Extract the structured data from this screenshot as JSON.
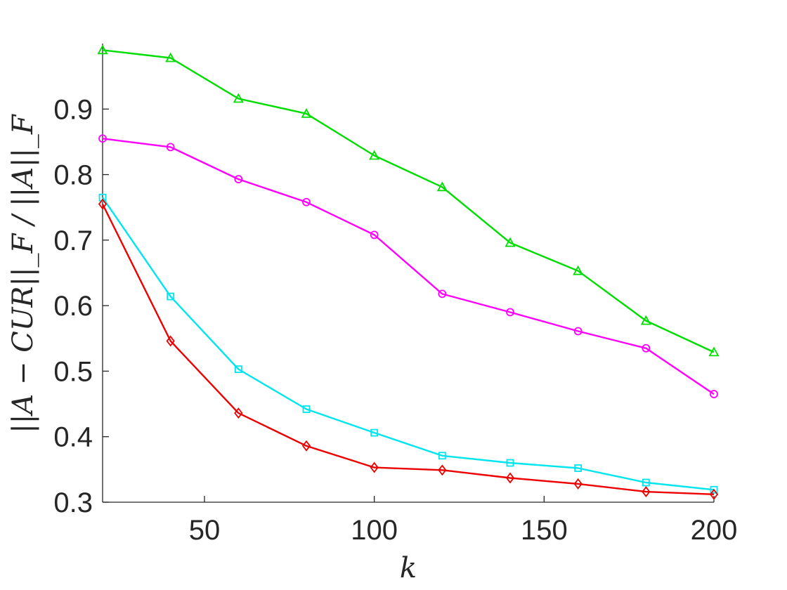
{
  "chart_data": {
    "type": "line",
    "title": "",
    "xlabel": "k",
    "ylabel": "||A − CUR||_F / ||A||_F",
    "xlim": [
      20,
      200
    ],
    "ylim": [
      0.3,
      1.0
    ],
    "xticks": [
      50,
      100,
      150,
      200
    ],
    "yticks": [
      0.3,
      0.4,
      0.5,
      0.6,
      0.7,
      0.8,
      0.9
    ],
    "xtick_labels": [
      "50",
      "100",
      "150",
      "200"
    ],
    "ytick_labels": [
      "0.3",
      "0.4",
      "0.5",
      "0.6",
      "0.7",
      "0.8",
      "0.9"
    ],
    "grid": false,
    "legend": "none",
    "x": [
      20,
      40,
      60,
      80,
      100,
      120,
      140,
      160,
      180,
      200
    ],
    "series": [
      {
        "color": "#00dd00",
        "marker": "triangle",
        "values": [
          0.99,
          0.978,
          0.916,
          0.893,
          0.829,
          0.781,
          0.696,
          0.653,
          0.577,
          0.529
        ]
      },
      {
        "color": "#ff00ff",
        "marker": "circle",
        "values": [
          0.855,
          0.842,
          0.793,
          0.758,
          0.708,
          0.618,
          0.59,
          0.561,
          0.535,
          0.465
        ]
      },
      {
        "color": "#00e5ee",
        "marker": "square",
        "values": [
          0.765,
          0.614,
          0.503,
          0.442,
          0.406,
          0.371,
          0.36,
          0.352,
          0.33,
          0.319
        ]
      },
      {
        "color": "#ee0000",
        "marker": "diamond",
        "values": [
          0.755,
          0.546,
          0.436,
          0.386,
          0.353,
          0.349,
          0.337,
          0.328,
          0.316,
          0.312
        ]
      }
    ]
  }
}
